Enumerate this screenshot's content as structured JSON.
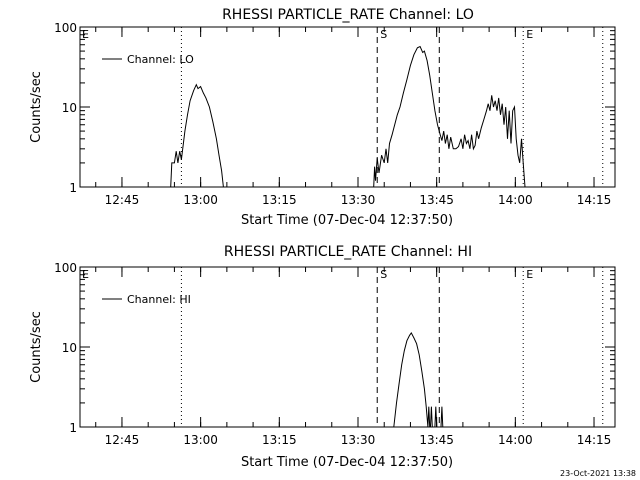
{
  "stamp": "23-Oct-2021 13:38",
  "chart_data": [
    {
      "type": "line",
      "title": "RHESSI PARTICLE_RATE Channel: LO",
      "xlabel": "Start Time (07-Dec-04 12:37:50)",
      "ylabel": "Counts/sec",
      "xlim": [
        "12:37",
        "14:19"
      ],
      "ylim": [
        1,
        100
      ],
      "yscale": "log",
      "xticks": [
        "12:45",
        "13:00",
        "13:15",
        "13:30",
        "13:45",
        "14:00",
        "14:15"
      ],
      "yticks": [
        "1",
        "10",
        "100"
      ],
      "legend": "top-left",
      "series": [
        {
          "name": "Channel: LO",
          "points": [
            [
              "12:54:18",
              1
            ],
            [
              "12:54:30",
              2.0
            ],
            [
              "12:55:00",
              2.0
            ],
            [
              "12:55:20",
              2.8
            ],
            [
              "12:55:40",
              2.0
            ],
            [
              "12:56:00",
              2.8
            ],
            [
              "12:56:20",
              2.2
            ],
            [
              "12:57:00",
              5
            ],
            [
              "12:57:30",
              8
            ],
            [
              "12:58:00",
              12
            ],
            [
              "12:58:40",
              16
            ],
            [
              "12:59:10",
              19
            ],
            [
              "12:59:30",
              17
            ],
            [
              "13:00:00",
              18
            ],
            [
              "13:00:30",
              15
            ],
            [
              "13:01:00",
              13
            ],
            [
              "13:01:40",
              10
            ],
            [
              "13:02:20",
              6.5
            ],
            [
              "13:03:00",
              4
            ],
            [
              "13:03:30",
              2.5
            ],
            [
              "13:04:00",
              1.6
            ],
            [
              "13:04:20",
              1
            ],
            [
              "13:33:00",
              1
            ],
            [
              "13:33:10",
              1.8
            ],
            [
              "13:33:20",
              1.2
            ],
            [
              "13:33:40",
              2.3
            ],
            [
              "13:34:00",
              1.5
            ],
            [
              "13:34:30",
              2.5
            ],
            [
              "13:35:00",
              2.0
            ],
            [
              "13:35:20",
              3.0
            ],
            [
              "13:35:40",
              2.0
            ],
            [
              "13:36:00",
              3.5
            ],
            [
              "13:36:30",
              4.5
            ],
            [
              "13:37:00",
              6
            ],
            [
              "13:37:30",
              8
            ],
            [
              "13:38:00",
              10
            ],
            [
              "13:38:40",
              15
            ],
            [
              "13:39:20",
              22
            ],
            [
              "13:40:00",
              33
            ],
            [
              "13:40:40",
              45
            ],
            [
              "13:41:20",
              55
            ],
            [
              "13:41:50",
              57
            ],
            [
              "13:42:20",
              48
            ],
            [
              "13:42:40",
              50
            ],
            [
              "13:43:10",
              38
            ],
            [
              "13:43:40",
              25
            ],
            [
              "13:44:10",
              15
            ],
            [
              "13:44:40",
              9
            ],
            [
              "13:45:10",
              6
            ],
            [
              "13:45:40",
              4.5
            ],
            [
              "13:46:00",
              3.8
            ],
            [
              "13:46:20",
              5
            ],
            [
              "13:46:40",
              3.5
            ],
            [
              "13:47:00",
              4.5
            ],
            [
              "13:47:20",
              3.0
            ],
            [
              "13:47:40",
              4.2
            ],
            [
              "13:48:10",
              3.0
            ],
            [
              "13:48:40",
              3.0
            ],
            [
              "13:49:10",
              3.2
            ],
            [
              "13:49:40",
              4.0
            ],
            [
              "13:50:00",
              3.0
            ],
            [
              "13:50:20",
              4.5
            ],
            [
              "13:50:40",
              3.5
            ],
            [
              "13:51:00",
              3.8
            ],
            [
              "13:51:20",
              3.0
            ],
            [
              "13:51:40",
              4.5
            ],
            [
              "13:52:00",
              3.0
            ],
            [
              "13:52:20",
              3.3
            ],
            [
              "13:52:40",
              5
            ],
            [
              "13:53:00",
              4
            ],
            [
              "13:53:30",
              5.5
            ],
            [
              "13:54:00",
              7
            ],
            [
              "13:54:30",
              9
            ],
            [
              "13:54:50",
              11
            ],
            [
              "13:55:10",
              9
            ],
            [
              "13:55:30",
              14
            ],
            [
              "13:55:50",
              10
            ],
            [
              "13:56:10",
              12
            ],
            [
              "13:56:30",
              9
            ],
            [
              "13:56:50",
              13
            ],
            [
              "13:57:10",
              8
            ],
            [
              "13:57:30",
              11
            ],
            [
              "13:57:50",
              6
            ],
            [
              "13:58:10",
              10
            ],
            [
              "13:58:30",
              4
            ],
            [
              "13:58:50",
              9
            ],
            [
              "13:59:10",
              3.5
            ],
            [
              "13:59:30",
              9
            ],
            [
              "13:59:50",
              10
            ],
            [
              "14:00:10",
              4
            ],
            [
              "14:00:30",
              2.5
            ],
            [
              "14:00:50",
              2
            ],
            [
              "14:01:10",
              4
            ],
            [
              "14:01:30",
              2
            ],
            [
              "14:01:50",
              1
            ]
          ]
        }
      ]
    },
    {
      "type": "line",
      "title": "RHESSI PARTICLE_RATE Channel: HI",
      "xlabel": "Start Time (07-Dec-04 12:37:50)",
      "ylabel": "Counts/sec",
      "xlim": [
        "12:37",
        "14:19"
      ],
      "ylim": [
        1,
        100
      ],
      "yscale": "log",
      "xticks": [
        "12:45",
        "13:00",
        "13:15",
        "13:30",
        "13:45",
        "14:00",
        "14:15"
      ],
      "yticks": [
        "1",
        "10",
        "100"
      ],
      "legend": "top-left",
      "series": [
        {
          "name": "Channel: HI",
          "points": [
            [
              "13:36:50",
              1
            ],
            [
              "13:37:20",
              2
            ],
            [
              "13:37:50",
              3.5
            ],
            [
              "13:38:20",
              6
            ],
            [
              "13:38:50",
              9
            ],
            [
              "13:39:20",
              12
            ],
            [
              "13:39:50",
              14
            ],
            [
              "13:40:10",
              15
            ],
            [
              "13:40:40",
              13
            ],
            [
              "13:41:10",
              11
            ],
            [
              "13:41:40",
              8
            ],
            [
              "13:42:10",
              5
            ],
            [
              "13:42:40",
              3
            ],
            [
              "13:43:00",
              1.8
            ],
            [
              "13:43:20",
              1
            ],
            [
              "13:43:30",
              1.8
            ],
            [
              "13:43:40",
              1
            ],
            [
              "13:43:50",
              1
            ],
            [
              "13:44:00",
              1.8
            ],
            [
              "13:44:10",
              1
            ],
            [
              "13:44:40",
              1
            ],
            [
              "13:44:50",
              1.8
            ],
            [
              "13:45:00",
              1
            ],
            [
              "13:45:50",
              1
            ],
            [
              "13:46:00",
              1.8
            ],
            [
              "13:46:10",
              1
            ]
          ]
        }
      ]
    }
  ],
  "markers": [
    {
      "time": "12:56:20",
      "style": "dotted",
      "label": ""
    },
    {
      "time": "13:33:40",
      "style": "dashed",
      "label": "S"
    },
    {
      "time": "13:45:30",
      "style": "dashed",
      "label": ""
    },
    {
      "time": "14:01:30",
      "style": "dotted",
      "label": "E"
    },
    {
      "time": "14:16:40",
      "style": "dotted",
      "label": ""
    }
  ],
  "corner_label": "E"
}
